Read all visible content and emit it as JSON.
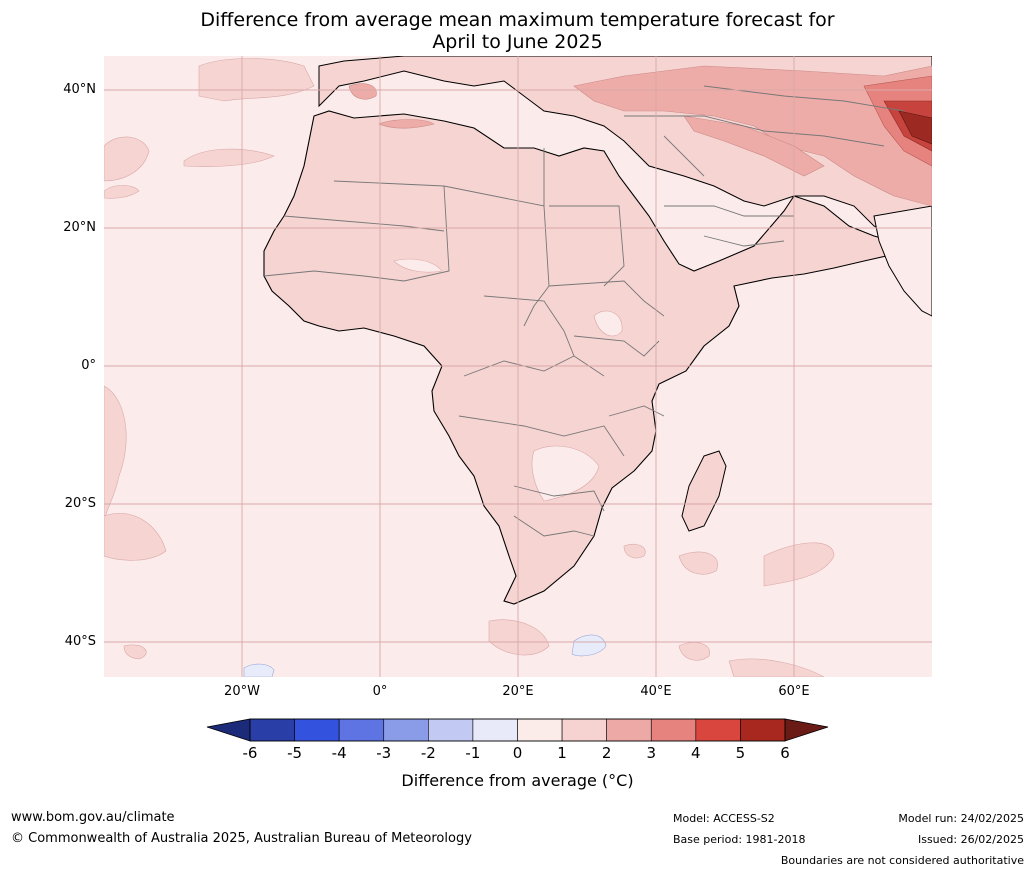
{
  "title": {
    "line1": "Difference from average mean maximum temperature forecast for",
    "line2": "April to June 2025"
  },
  "map": {
    "region": "Africa and Middle East",
    "lat_labels": [
      "40°N",
      "20°N",
      "0°",
      "20°S",
      "40°S"
    ],
    "lon_labels": [
      "20°W",
      "0°",
      "20°E",
      "40°E",
      "60°E"
    ]
  },
  "colorbar": {
    "ticks": [
      "-6",
      "-5",
      "-4",
      "-3",
      "-2",
      "-1",
      "0",
      "1",
      "2",
      "3",
      "4",
      "5",
      "6"
    ],
    "label": "Difference from average (°C)",
    "colors": [
      "#2a3ea8",
      "#3352dd",
      "#5e74e2",
      "#8a9be8",
      "#c2c9f2",
      "#e8eafa",
      "#fbecea",
      "#f6d2d0",
      "#eda9a6",
      "#e6837e",
      "#d8463d",
      "#a82820"
    ],
    "under_color": "#1c2a7a",
    "over_color": "#6a1b16"
  },
  "colors": {
    "ocean": "#fbeceb",
    "land_1_2": "#f6d4d2",
    "band_2_3": "#eeaca9",
    "band_3_4": "#e6837e",
    "band_4_5": "#c6443d",
    "band_5_6": "#9c2a22",
    "cool_patch": "#e8ecfa",
    "gridline": "#d9a8a8"
  },
  "footer": {
    "website": "www.bom.gov.au/climate",
    "copyright": "© Commonwealth of Australia 2025, Australian Bureau of Meteorology",
    "model": "Model: ACCESS-S2",
    "base_period": "Base period: 1981-2018",
    "model_run": "Model run: 24/02/2025",
    "issued": "Issued: 26/02/2025",
    "disclaimer": "Boundaries are not considered authoritative"
  }
}
